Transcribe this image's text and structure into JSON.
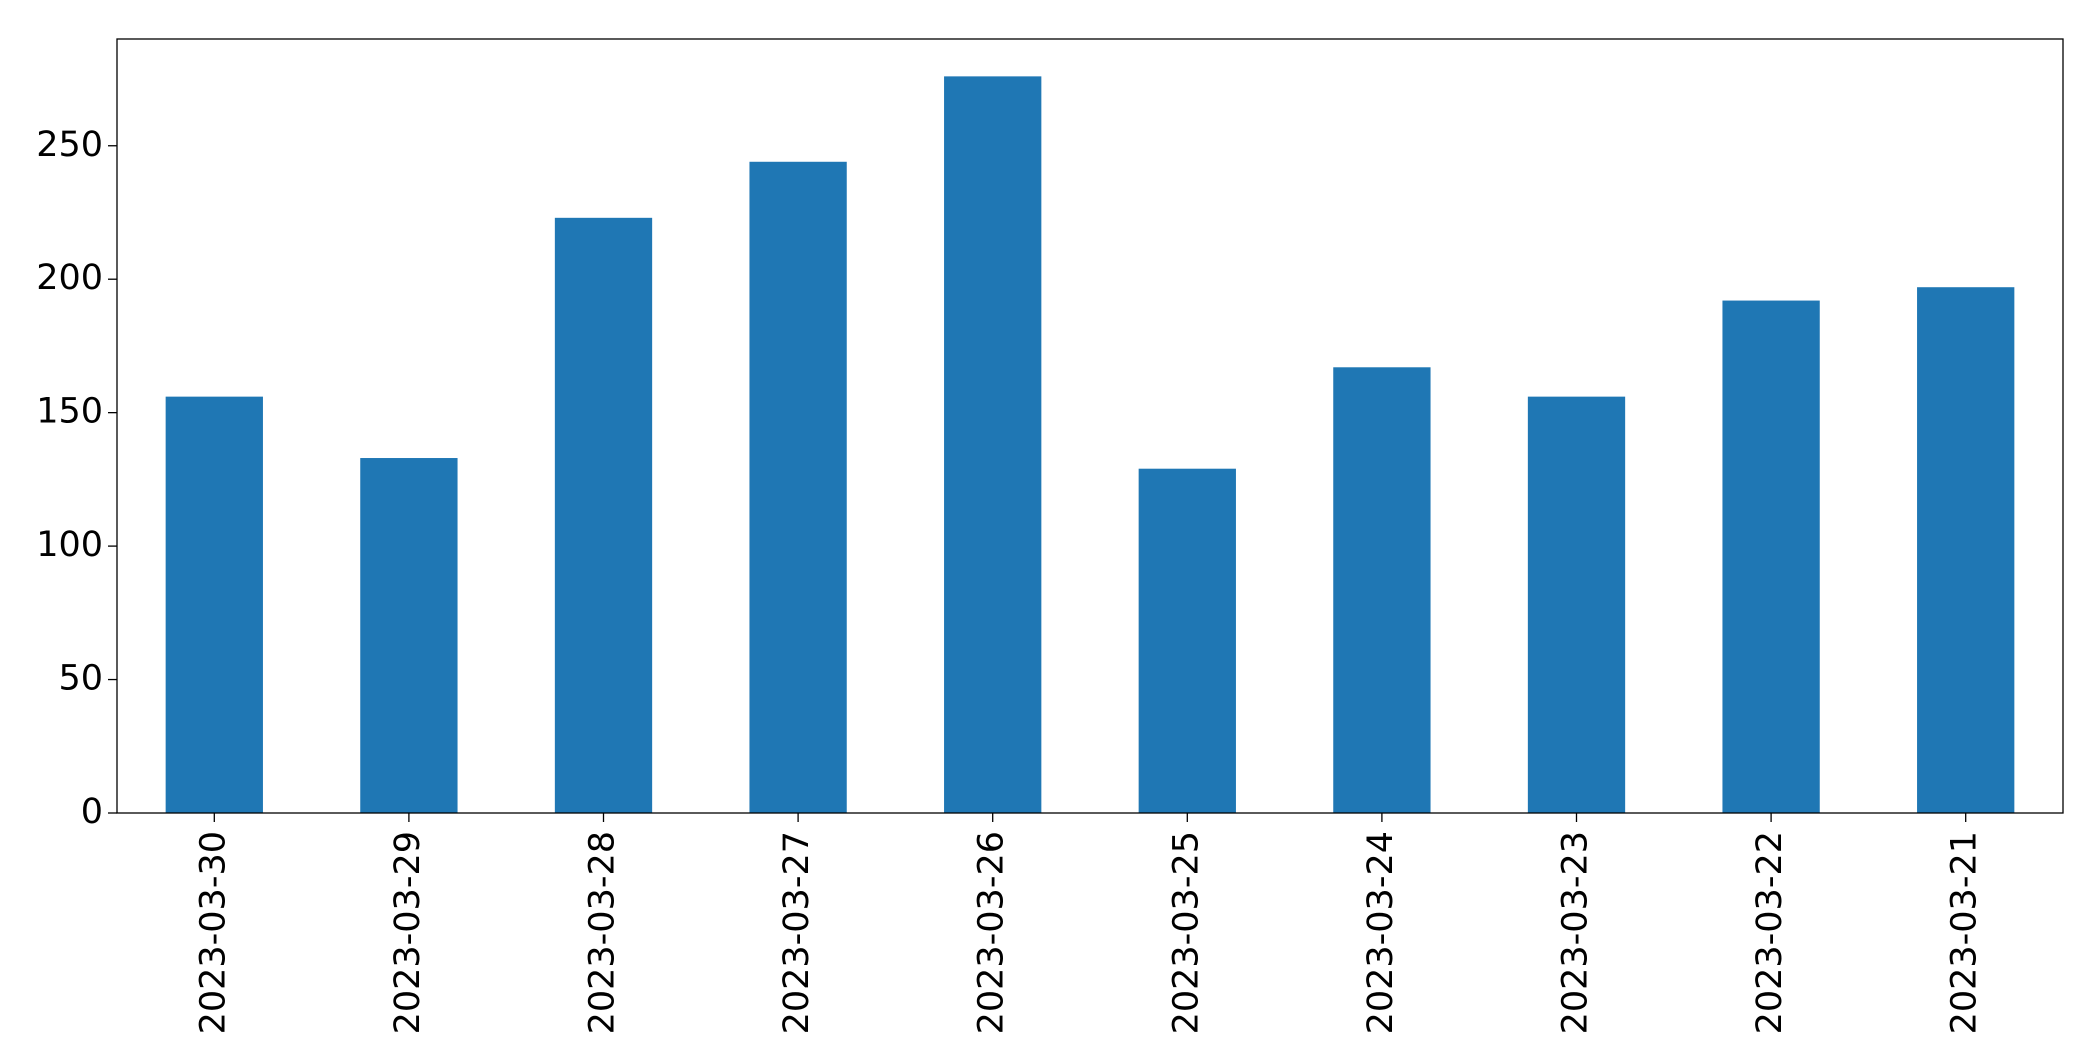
{
  "chart_data": {
    "type": "bar",
    "categories": [
      "2023-03-30",
      "2023-03-29",
      "2023-03-28",
      "2023-03-27",
      "2023-03-26",
      "2023-03-25",
      "2023-03-24",
      "2023-03-23",
      "2023-03-22",
      "2023-03-21"
    ],
    "values": [
      156,
      133,
      223,
      244,
      276,
      129,
      167,
      156,
      192,
      197
    ],
    "color": "#1f77b4",
    "ylim": [
      0,
      290
    ],
    "yticks": [
      0,
      50,
      100,
      150,
      200,
      250
    ],
    "grid": false
  }
}
